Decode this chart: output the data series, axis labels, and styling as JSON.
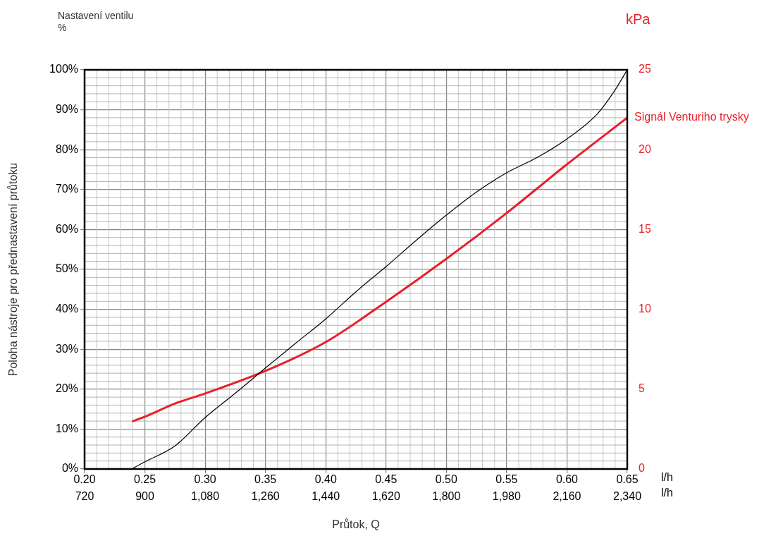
{
  "chart_data": {
    "type": "line",
    "title": "Nastavení ventilu",
    "subtitle": "%",
    "ylabel": "Poloha nástroje pro přednastavení průtoku",
    "y2label": "kPa",
    "xlabel": "Průtok, Q",
    "annotations": [
      "l/h",
      "l/h"
    ],
    "series": [
      {
        "name": null,
        "color": "#000000",
        "x": [
          0.239,
          0.25,
          0.275,
          0.3,
          0.325,
          0.35,
          0.375,
          0.4,
          0.425,
          0.45,
          0.475,
          0.5,
          0.525,
          0.55,
          0.575,
          0.6,
          0.625,
          0.64,
          0.65
        ],
        "values": [
          0,
          1.8,
          5.8,
          12.9,
          19,
          25.3,
          31.5,
          37.6,
          44.4,
          50.7,
          57.3,
          63.6,
          69.4,
          74.2,
          78,
          82.7,
          88.9,
          95,
          100
        ]
      },
      {
        "name": "Signál Venturiho trysky",
        "color": "#e8202a",
        "axis": "y2",
        "x": [
          0.24,
          0.25,
          0.275,
          0.3,
          0.35,
          0.4,
          0.45,
          0.5,
          0.55,
          0.6,
          0.65
        ],
        "values": [
          3.0,
          3.27,
          4.1,
          4.73,
          6.14,
          7.95,
          10.47,
          13.16,
          16.03,
          19.08,
          22.0
        ]
      }
    ],
    "xlim": [
      0.2,
      0.65
    ],
    "xticks": [
      {
        "value": 0.2,
        "label": "0.20"
      },
      {
        "value": 0.25,
        "label": "0.25"
      },
      {
        "value": 0.3,
        "label": "0.30"
      },
      {
        "value": 0.35,
        "label": "0.35"
      },
      {
        "value": 0.4,
        "label": "0.40"
      },
      {
        "value": 0.45,
        "label": "0.45"
      },
      {
        "value": 0.5,
        "label": "0.50"
      },
      {
        "value": 0.55,
        "label": "0.55"
      },
      {
        "value": 0.6,
        "label": "0.60"
      },
      {
        "value": 0.65,
        "label": "0.65"
      }
    ],
    "x2lim": [
      720,
      2340
    ],
    "x2ticks": [
      720,
      900,
      {
        "value": 1080,
        "label": "1,080"
      },
      {
        "value": 1260,
        "label": "1,260"
      },
      {
        "value": 1440,
        "label": "1,440"
      },
      {
        "value": 1620,
        "label": "1,620"
      },
      {
        "value": 1800,
        "label": "1,800"
      },
      {
        "value": 1980,
        "label": "1,980"
      },
      {
        "value": 2160,
        "label": "2,160"
      },
      {
        "value": 2340,
        "label": "2,340"
      }
    ],
    "ylim": [
      0,
      100
    ],
    "yticks": [
      {
        "value": 0,
        "label": "0%"
      },
      {
        "value": 10,
        "label": "10%"
      },
      {
        "value": 20,
        "label": "20%"
      },
      {
        "value": 30,
        "label": "30%"
      },
      {
        "value": 40,
        "label": "40%"
      },
      {
        "value": 50,
        "label": "50%"
      },
      {
        "value": 60,
        "label": "60%"
      },
      {
        "value": 70,
        "label": "70%"
      },
      {
        "value": 80,
        "label": "80%"
      },
      {
        "value": 90,
        "label": "90%"
      },
      {
        "value": 100,
        "label": "100%"
      }
    ],
    "y2lim": [
      0,
      25
    ],
    "y2ticks": [
      0,
      5,
      10,
      15,
      20,
      25
    ],
    "grid": true,
    "legend": false,
    "marker": "none",
    "line_style": "solid"
  }
}
